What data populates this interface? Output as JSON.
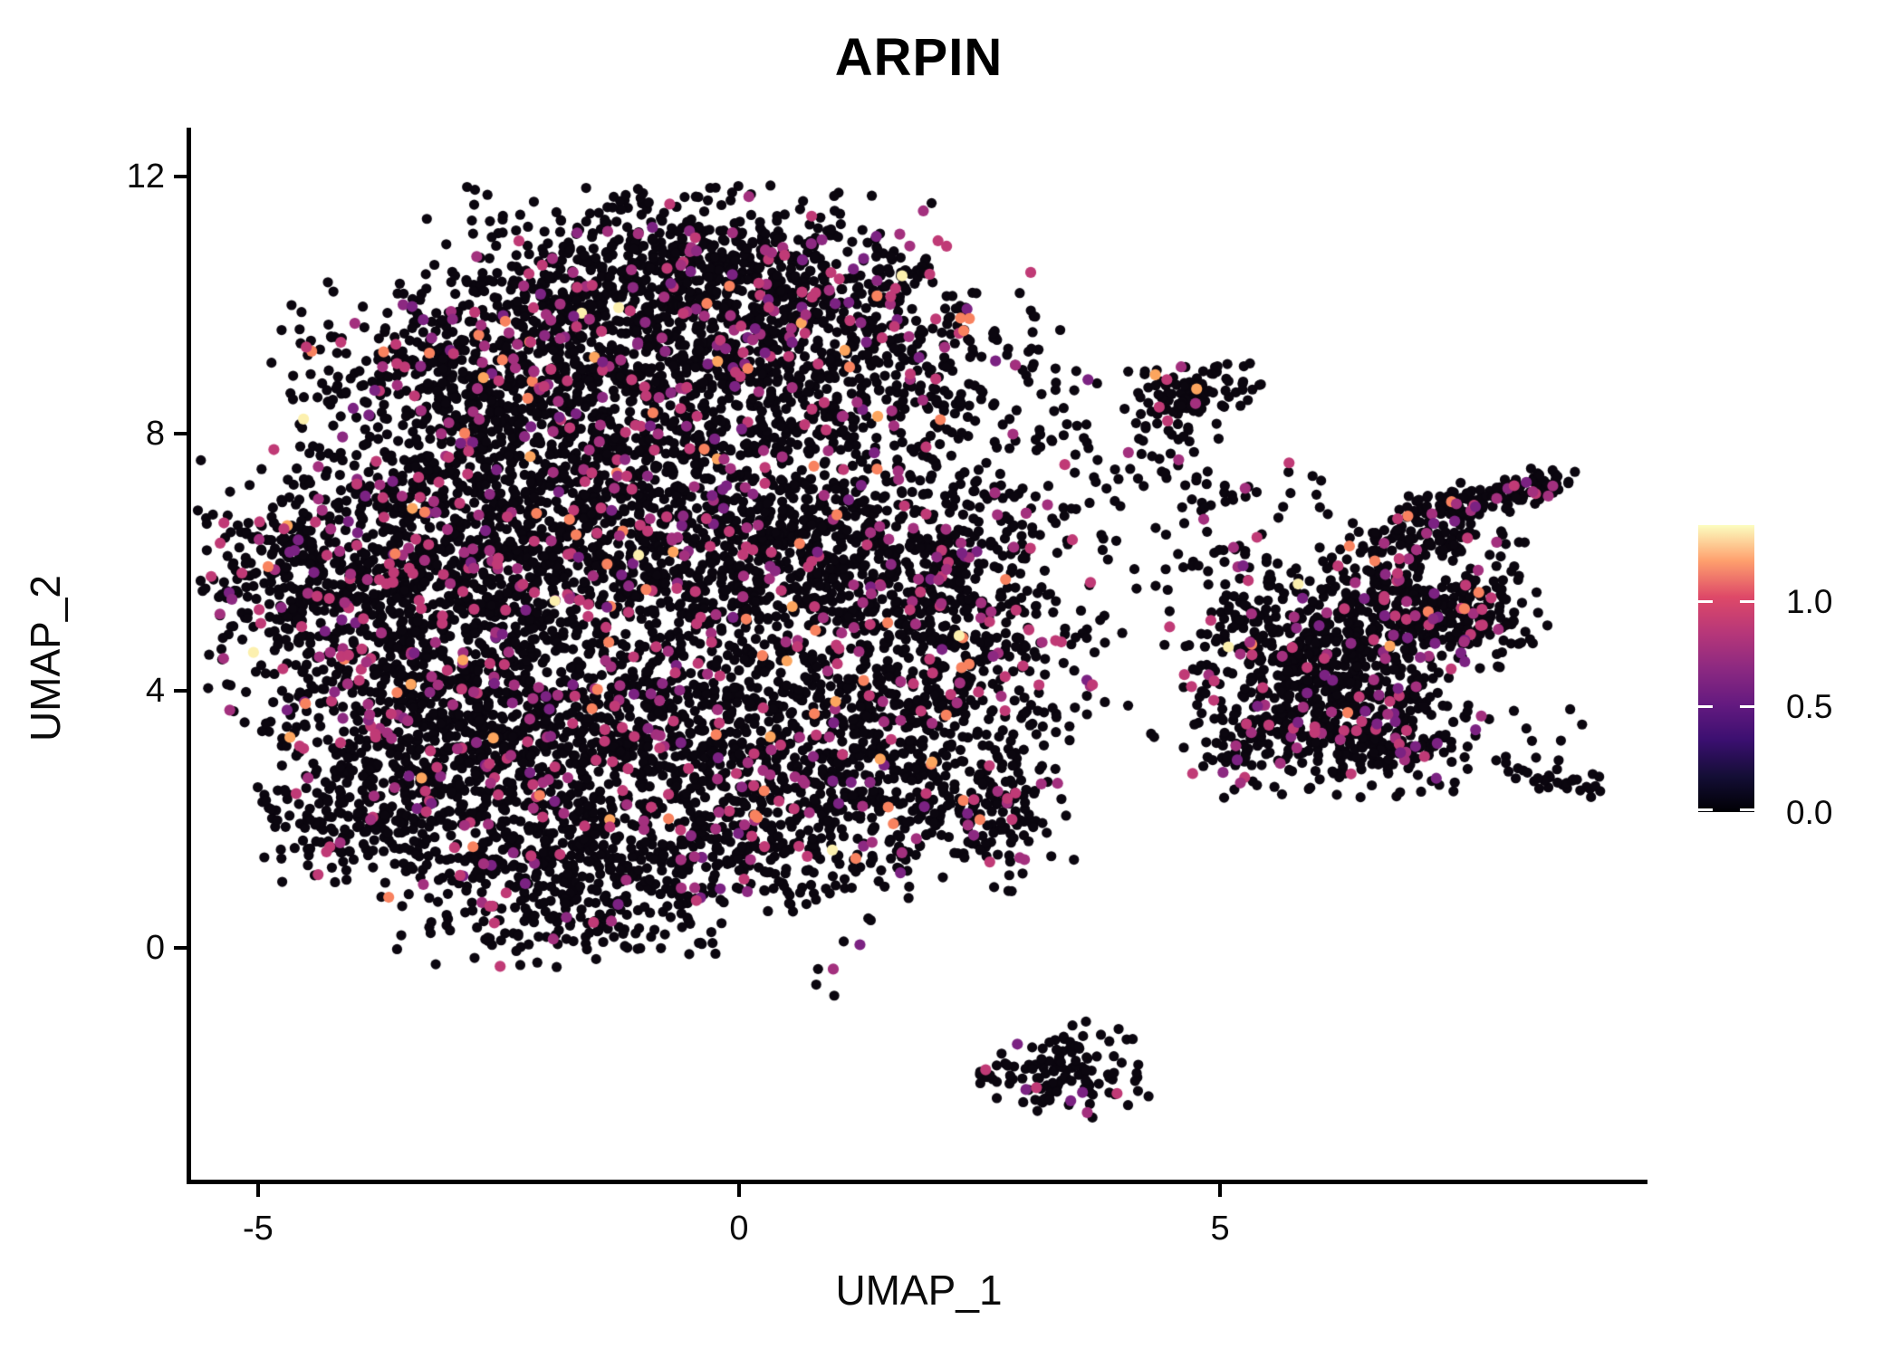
{
  "title": "ARPIN",
  "chart_data": {
    "type": "scatter",
    "title": "ARPIN",
    "xlabel": "UMAP_1",
    "ylabel": "UMAP_2",
    "xlim": [
      -5.705,
      9.443
    ],
    "ylim": [
      -3.654,
      12.76
    ],
    "x_ticks": [
      {
        "value": -5,
        "label": "-5"
      },
      {
        "value": 0,
        "label": "0"
      },
      {
        "value": 5,
        "label": "5"
      }
    ],
    "y_ticks": [
      {
        "value": 0,
        "label": "0"
      },
      {
        "value": 4,
        "label": "4"
      },
      {
        "value": 8,
        "label": "8"
      },
      {
        "value": 12,
        "label": "12"
      }
    ],
    "grid": false,
    "legend_position": "right",
    "colorbar": {
      "label_values": [
        {
          "value": 0.0,
          "label": "0.0"
        },
        {
          "value": 0.5,
          "label": "0.5"
        },
        {
          "value": 1.0,
          "label": "1.0"
        }
      ],
      "display_max": 1.36,
      "colormap": "magma",
      "stops": [
        {
          "p": 0.0,
          "c": "#000004"
        },
        {
          "p": 0.125,
          "c": "#140e36"
        },
        {
          "p": 0.25,
          "c": "#3b0f70"
        },
        {
          "p": 0.375,
          "c": "#641a80"
        },
        {
          "p": 0.5,
          "c": "#8c2981"
        },
        {
          "p": 0.625,
          "c": "#b73779"
        },
        {
          "p": 0.75,
          "c": "#de4968"
        },
        {
          "p": 0.875,
          "c": "#fe9f6d"
        },
        {
          "p": 1.0,
          "c": "#fcfdbf"
        }
      ]
    },
    "point_radius_px": 5.6,
    "accent_radius_px": 6.1,
    "seed": 42,
    "expression_palette": [
      {
        "c": "#0b060f",
        "p": 0.895
      },
      {
        "c": "#7b2282",
        "p": 0.016
      },
      {
        "c": "#a3307e",
        "p": 0.032
      },
      {
        "c": "#c03a76",
        "p": 0.038
      },
      {
        "c": "#8c2981",
        "p": 0.008
      },
      {
        "c": "#f8825f",
        "p": 0.007
      },
      {
        "c": "#fca55e",
        "p": 0.003
      },
      {
        "c": "#fcf0ae",
        "p": 0.001
      }
    ],
    "clusters": [
      {
        "name": "main-top-cap",
        "cx": -0.5,
        "cy": 10.45,
        "sx": 1.25,
        "sy": 0.62,
        "n": 800
      },
      {
        "name": "main-upper-left",
        "cx": -2.45,
        "cy": 8.85,
        "sx": 1.05,
        "sy": 0.75,
        "n": 750
      },
      {
        "name": "main-upper-right",
        "cx": 0.55,
        "cy": 9.0,
        "sx": 1.25,
        "sy": 0.8,
        "n": 800
      },
      {
        "name": "main-left-lobe",
        "cx": -3.8,
        "cy": 5.6,
        "sx": 0.85,
        "sy": 1.15,
        "n": 850
      },
      {
        "name": "main-left-tip",
        "cx": -4.9,
        "cy": 5.9,
        "sx": 0.3,
        "sy": 0.45,
        "n": 60
      },
      {
        "name": "main-center-left",
        "cx": -1.8,
        "cy": 6.6,
        "sx": 1.15,
        "sy": 1.05,
        "n": 950
      },
      {
        "name": "main-center-right",
        "cx": 0.6,
        "cy": 6.2,
        "sx": 1.15,
        "sy": 1.05,
        "n": 850
      },
      {
        "name": "main-right-bulge",
        "cx": 2.2,
        "cy": 5.3,
        "sx": 0.7,
        "sy": 1.0,
        "n": 420
      },
      {
        "name": "main-lower-left",
        "cx": -3.0,
        "cy": 3.1,
        "sx": 0.9,
        "sy": 0.95,
        "n": 700
      },
      {
        "name": "main-lower-center",
        "cx": -0.9,
        "cy": 3.5,
        "sx": 1.15,
        "sy": 1.0,
        "n": 800
      },
      {
        "name": "main-lower-right",
        "cx": 1.4,
        "cy": 3.1,
        "sx": 0.85,
        "sy": 0.85,
        "n": 480
      },
      {
        "name": "main-bottom-lobe",
        "cx": -1.9,
        "cy": 1.0,
        "sx": 0.85,
        "sy": 0.6,
        "n": 420
      },
      {
        "name": "main-bottom-taper",
        "cx": 0.45,
        "cy": 1.6,
        "sx": 0.85,
        "sy": 0.55,
        "n": 280
      },
      {
        "name": "main-bottom-left-bit",
        "cx": -4.05,
        "cy": 2.1,
        "sx": 0.55,
        "sy": 0.5,
        "n": 140
      },
      {
        "name": "main-right-low-bump",
        "cx": 2.6,
        "cy": 2.1,
        "sx": 0.45,
        "sy": 0.55,
        "n": 130
      },
      {
        "name": "topright-island",
        "cx": 4.75,
        "cy": 8.65,
        "sx": 0.3,
        "sy": 0.2,
        "n": 90
      },
      {
        "name": "topright-island-halo",
        "cx": 4.6,
        "cy": 8.0,
        "sx": 0.25,
        "sy": 0.35,
        "n": 22
      },
      {
        "name": "right-body-upper",
        "cx": 7.35,
        "cy": 5.15,
        "sx": 0.5,
        "sy": 0.4,
        "n": 260
      },
      {
        "name": "right-body-main",
        "cx": 6.1,
        "cy": 4.5,
        "sx": 0.65,
        "sy": 0.55,
        "n": 450
      },
      {
        "name": "right-body-lower",
        "cx": 6.5,
        "cy": 3.35,
        "sx": 0.6,
        "sy": 0.45,
        "n": 300
      },
      {
        "name": "right-left-fringe",
        "cx": 5.35,
        "cy": 3.3,
        "sx": 0.35,
        "sy": 0.45,
        "n": 90
      },
      {
        "name": "right-left-upper",
        "cx": 5.35,
        "cy": 5.5,
        "sx": 0.25,
        "sy": 0.3,
        "n": 40
      },
      {
        "name": "right-connector",
        "cx": 6.55,
        "cy": 5.7,
        "sx": 0.3,
        "sy": 0.45,
        "n": 80
      },
      {
        "name": "right-subarm",
        "cx": 7.35,
        "cy": 6.35,
        "sx": 0.38,
        "sy": 0.22,
        "n": 80
      },
      {
        "name": "bottom-island",
        "cx": 3.5,
        "cy": -1.9,
        "sx": 0.38,
        "sy": 0.33,
        "n": 115
      }
    ],
    "segments": [
      {
        "name": "right-arm",
        "x1": 6.9,
        "y1": 6.7,
        "x2": 8.5,
        "y2": 7.3,
        "jx": 0.18,
        "jy": 0.12,
        "n": 150
      },
      {
        "name": "right-tail",
        "x1": 7.95,
        "y1": 2.8,
        "x2": 9.05,
        "y2": 2.45,
        "jx": 0.12,
        "jy": 0.09,
        "n": 30
      },
      {
        "name": "bottom-island-tail",
        "x1": 2.4,
        "y1": -1.95,
        "x2": 2.95,
        "y2": -1.95,
        "jx": 0.1,
        "jy": 0.1,
        "n": 20
      }
    ],
    "uniform_regions": [
      {
        "name": "bridge-sparse",
        "x0": 2.9,
        "x1": 5.3,
        "y0": 3.2,
        "y1": 7.2,
        "n": 90
      },
      {
        "name": "upper-bridge-sparse",
        "x0": 2.9,
        "x1": 4.6,
        "y0": 6.8,
        "y1": 9.0,
        "n": 50
      },
      {
        "name": "right-upper-scatter",
        "x0": 4.6,
        "x1": 6.3,
        "y0": 5.8,
        "y1": 7.6,
        "n": 40
      },
      {
        "name": "below-main-strays",
        "x0": -0.3,
        "x1": 1.5,
        "y0": -0.9,
        "y1": 0.1,
        "n": 6
      },
      {
        "name": "below-right-strays",
        "x0": 7.4,
        "x1": 8.8,
        "y0": 2.6,
        "y1": 3.9,
        "n": 12
      },
      {
        "name": "top-sparse-strays",
        "x0": 2.1,
        "x1": 3.2,
        "y0": 9.0,
        "y1": 10.2,
        "n": 10
      }
    ]
  }
}
